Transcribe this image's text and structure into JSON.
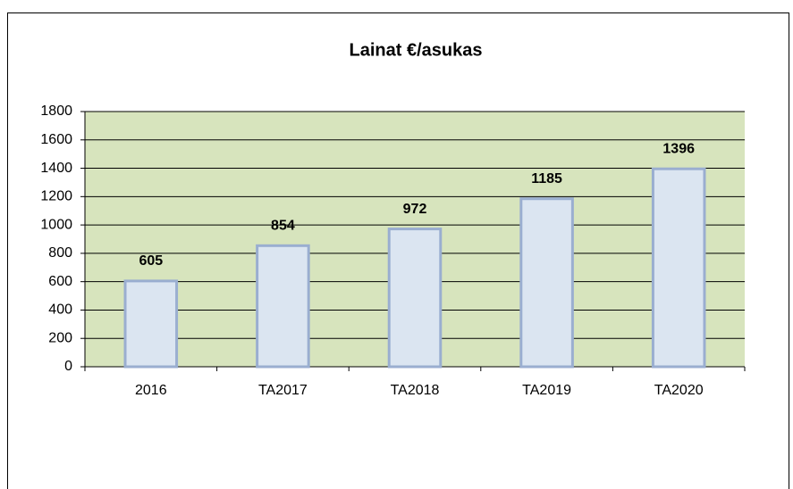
{
  "chart_data": {
    "type": "bar",
    "title": "Lainat €/asukas",
    "categories": [
      "2016",
      "TA2017",
      "TA2018",
      "TA2019",
      "TA2020"
    ],
    "values": [
      605,
      854,
      972,
      1185,
      1396
    ],
    "color": "#dbe5f1",
    "edge_color": "#9aaed0",
    "plot_background": "#d7e4bd",
    "ylim": [
      0,
      1800
    ],
    "yticks": [
      0,
      200,
      400,
      600,
      800,
      1000,
      1200,
      1400,
      1600,
      1800
    ],
    "grid": true,
    "data_labels": true
  }
}
